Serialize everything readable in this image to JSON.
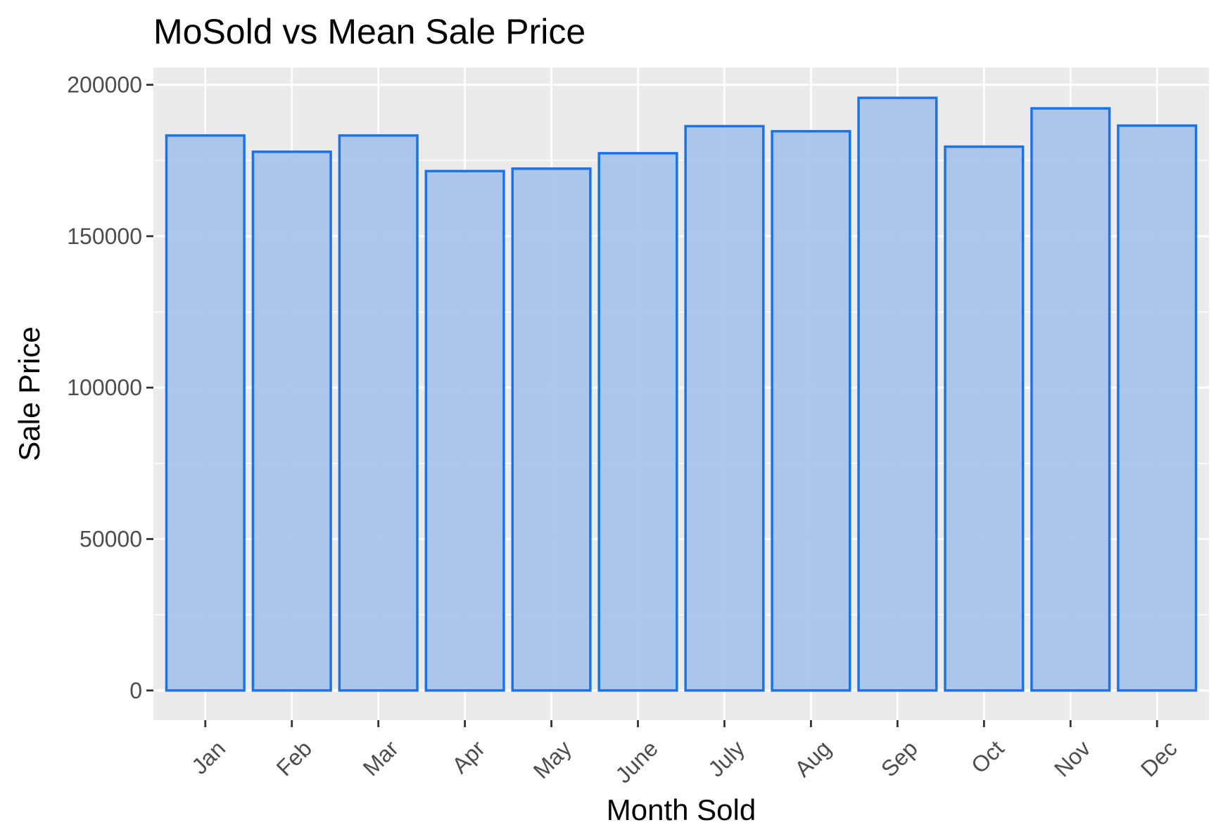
{
  "chart_data": {
    "type": "bar",
    "title": "MoSold vs Mean Sale Price",
    "xlabel": "Month Sold",
    "ylabel": "Sale Price",
    "categories": [
      "Jan",
      "Feb",
      "Mar",
      "Apr",
      "May",
      "June",
      "July",
      "Aug",
      "Sep",
      "Oct",
      "Nov",
      "Dec"
    ],
    "values": [
      183256,
      177882,
      183254,
      171503,
      172307,
      177395,
      186331,
      184652,
      195683,
      179564,
      192210,
      186518
    ],
    "ylim": [
      -9800,
      205700
    ],
    "yticks": [
      0,
      50000,
      100000,
      150000,
      200000
    ],
    "ytick_labels": [
      "0",
      "50000",
      "100000",
      "150000",
      "200000"
    ],
    "grid": true,
    "legend": "none",
    "colors": {
      "bar_fill": "#a9c3ea",
      "bar_stroke": "#1a73e8",
      "panel_background": "#ebebeb",
      "grid": "#ffffff"
    }
  }
}
